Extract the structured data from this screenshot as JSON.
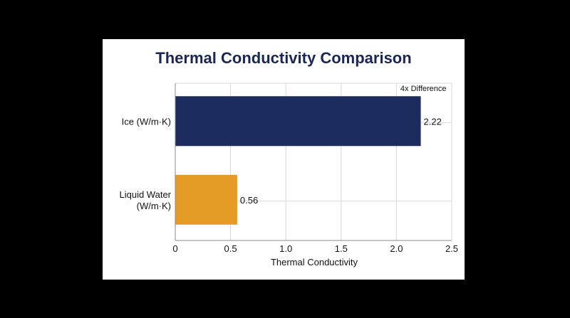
{
  "colors": {
    "page_background": "#000000",
    "card_background": "#ffffff",
    "title": "#1a2753",
    "ice_bar": "#1c2c5e",
    "water_bar": "#e59c27",
    "grid": "#d9d9d9",
    "axis": "#8a8a8a"
  },
  "chart_data": {
    "type": "bar",
    "orientation": "horizontal",
    "title": "Thermal Conductivity Comparison",
    "xlabel": "Thermal Conductivity",
    "ylabel": "",
    "xlim": [
      0,
      2.5
    ],
    "xticks": [
      0,
      0.5,
      1.0,
      1.5,
      2.0,
      2.5
    ],
    "xtick_labels": [
      "0",
      "0.5",
      "1.0",
      "1.5",
      "2.0",
      "2.5"
    ],
    "grid": true,
    "categories": [
      [
        "Ice (W/m·K)"
      ],
      [
        "Liquid Water",
        "(W/m·K)"
      ]
    ],
    "values": [
      2.22,
      0.56
    ],
    "value_labels": [
      "2.22",
      "0.56"
    ],
    "bar_colors": [
      "#1c2c5e",
      "#e59c27"
    ],
    "annotations": [
      {
        "text": "4x Difference",
        "x": 2.22
      }
    ]
  }
}
